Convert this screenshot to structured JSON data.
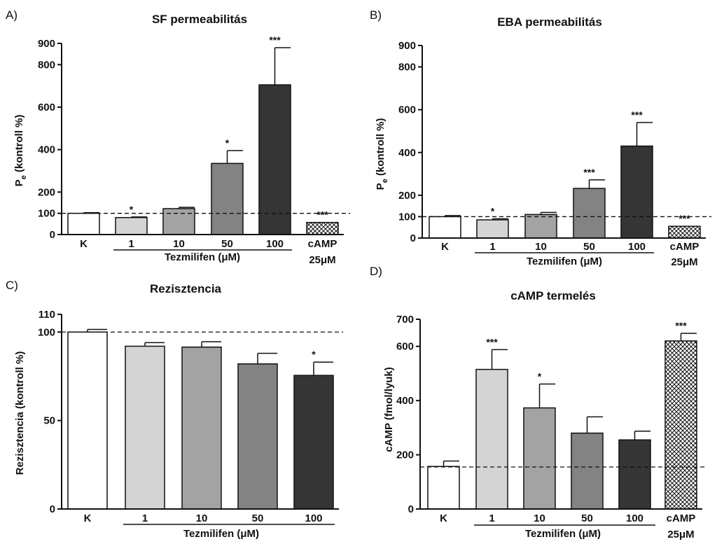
{
  "chart_data": [
    {
      "type": "bar",
      "panel": "A)",
      "title": "SF permeabilitás",
      "ylabel_main": "P",
      "ylabel_sub": "e",
      "ylabel_rest": " (kontroll %)",
      "ylim": [
        0,
        900
      ],
      "yticks": [
        0,
        100,
        200,
        400,
        600,
        800,
        900
      ],
      "reference_line": 100,
      "categories": [
        "K",
        "1",
        "10",
        "50",
        "100",
        "cAMP",
        "25μM"
      ],
      "bars": [
        {
          "label": "K",
          "value": 100,
          "error": 3,
          "fill": "#ffffff",
          "sig": ""
        },
        {
          "label": "1",
          "value": 80,
          "error": 3,
          "fill": "#d4d4d4",
          "sig": "*"
        },
        {
          "label": "10",
          "value": 122,
          "error": 6,
          "fill": "#a3a3a3",
          "sig": ""
        },
        {
          "label": "50",
          "value": 335,
          "error": 60,
          "fill": "#838383",
          "sig": "*"
        },
        {
          "label": "100",
          "value": 705,
          "error": 175,
          "fill": "#353535",
          "sig": "***"
        },
        {
          "label": "cAMP 25μM",
          "value": 57,
          "error": 0,
          "fill": "hatch",
          "sig": "***"
        }
      ],
      "group_label": "Tezmilifen (μM)"
    },
    {
      "type": "bar",
      "panel": "B)",
      "title": "EBA permeabilitás",
      "ylabel_main": "P",
      "ylabel_sub": "e",
      "ylabel_rest": " (kontroll %)",
      "ylim": [
        0,
        900
      ],
      "yticks": [
        0,
        100,
        200,
        400,
        600,
        800,
        900
      ],
      "reference_line": 100,
      "categories": [
        "K",
        "1",
        "10",
        "50",
        "100",
        "cAMP",
        "25μM"
      ],
      "bars": [
        {
          "label": "K",
          "value": 100,
          "error": 5,
          "fill": "#ffffff",
          "sig": ""
        },
        {
          "label": "1",
          "value": 85,
          "error": 5,
          "fill": "#d4d4d4",
          "sig": "*"
        },
        {
          "label": "10",
          "value": 110,
          "error": 10,
          "fill": "#a3a3a3",
          "sig": ""
        },
        {
          "label": "50",
          "value": 232,
          "error": 40,
          "fill": "#838383",
          "sig": "***"
        },
        {
          "label": "100",
          "value": 430,
          "error": 110,
          "fill": "#353535",
          "sig": "***"
        },
        {
          "label": "cAMP 25μM",
          "value": 55,
          "error": 0,
          "fill": "hatch",
          "sig": "***"
        }
      ],
      "group_label": "Tezmilifen (μM)"
    },
    {
      "type": "bar",
      "panel": "C)",
      "title": "Rezisztencia",
      "ylabel": "Rezisztencia (kontroll %)",
      "ylim": [
        0,
        110
      ],
      "yticks": [
        0,
        50,
        100,
        110
      ],
      "reference_line": 100,
      "categories": [
        "K",
        "1",
        "10",
        "50",
        "100"
      ],
      "bars": [
        {
          "label": "K",
          "value": 100,
          "error": 1.5,
          "fill": "#ffffff",
          "sig": ""
        },
        {
          "label": "1",
          "value": 92,
          "error": 2,
          "fill": "#d4d4d4",
          "sig": ""
        },
        {
          "label": "10",
          "value": 91.5,
          "error": 3,
          "fill": "#a3a3a3",
          "sig": ""
        },
        {
          "label": "50",
          "value": 82,
          "error": 6,
          "fill": "#838383",
          "sig": ""
        },
        {
          "label": "100",
          "value": 75.5,
          "error": 7.5,
          "fill": "#353535",
          "sig": "*"
        }
      ],
      "group_label": "Tezmilifen (μM)"
    },
    {
      "type": "bar",
      "panel": "D)",
      "title": "cAMP termelés",
      "ylabel": "cAMP (fmol/lyuk)",
      "ylim": [
        0,
        700
      ],
      "yticks": [
        0,
        200,
        400,
        600,
        700
      ],
      "reference_line": 155,
      "categories": [
        "K",
        "1",
        "10",
        "50",
        "100",
        "cAMP",
        "25μM"
      ],
      "bars": [
        {
          "label": "K",
          "value": 157,
          "error": 20,
          "fill": "#ffffff",
          "sig": ""
        },
        {
          "label": "1",
          "value": 515,
          "error": 73,
          "fill": "#d4d4d4",
          "sig": "***"
        },
        {
          "label": "10",
          "value": 373,
          "error": 88,
          "fill": "#a3a3a3",
          "sig": "*"
        },
        {
          "label": "50",
          "value": 280,
          "error": 60,
          "fill": "#838383",
          "sig": ""
        },
        {
          "label": "100",
          "value": 255,
          "error": 32,
          "fill": "#353535",
          "sig": ""
        },
        {
          "label": "cAMP 25μM",
          "value": 620,
          "error": 28,
          "fill": "hatch",
          "sig": "***"
        }
      ],
      "group_label": "Tezmilifen (μM)"
    }
  ]
}
